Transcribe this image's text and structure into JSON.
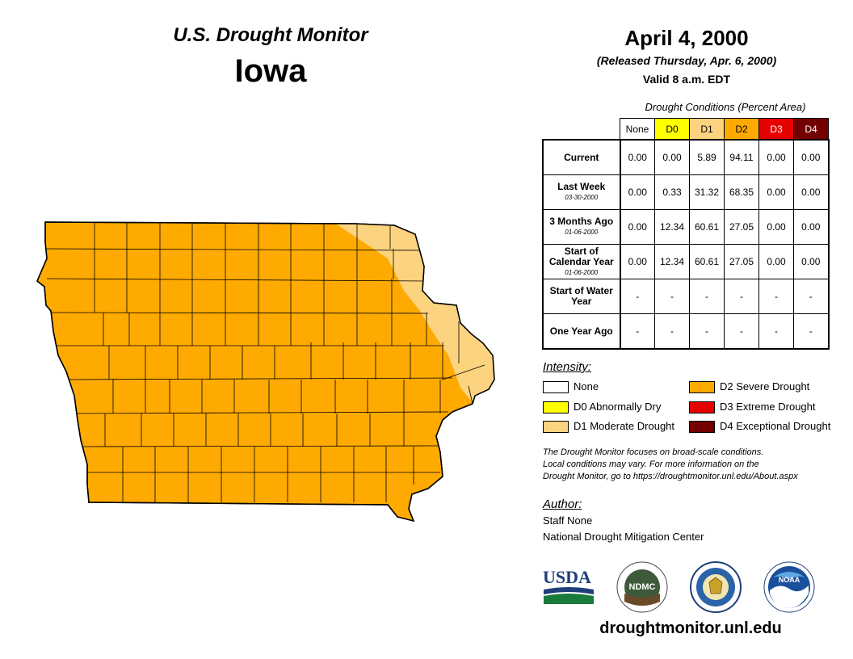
{
  "header": {
    "title": "U.S. Drought Monitor",
    "state": "Iowa",
    "date": "April 4, 2000",
    "released": "(Released Thursday, Apr. 6, 2000)",
    "valid": "Valid 8 a.m. EDT"
  },
  "table": {
    "caption": "Drought Conditions (Percent Area)",
    "columns": [
      "None",
      "D0",
      "D1",
      "D2",
      "D3",
      "D4"
    ],
    "rows": [
      {
        "label": "Current",
        "sub": "",
        "values": [
          "0.00",
          "0.00",
          "5.89",
          "94.11",
          "0.00",
          "0.00"
        ]
      },
      {
        "label": "Last Week",
        "sub": "03-30-2000",
        "values": [
          "0.00",
          "0.33",
          "31.32",
          "68.35",
          "0.00",
          "0.00"
        ]
      },
      {
        "label": "3 Months Ago",
        "sub": "01-06-2000",
        "values": [
          "0.00",
          "12.34",
          "60.61",
          "27.05",
          "0.00",
          "0.00"
        ]
      },
      {
        "label": "Start of Calendar Year",
        "sub": "01-06-2000",
        "values": [
          "0.00",
          "12.34",
          "60.61",
          "27.05",
          "0.00",
          "0.00"
        ]
      },
      {
        "label": "Start of Water Year",
        "sub": "",
        "values": [
          "-",
          "-",
          "-",
          "-",
          "-",
          "-"
        ]
      },
      {
        "label": "One Year Ago",
        "sub": "",
        "values": [
          "-",
          "-",
          "-",
          "-",
          "-",
          "-"
        ]
      }
    ]
  },
  "legend": {
    "title": "Intensity:",
    "items": [
      {
        "label": "None",
        "color": "#ffffff"
      },
      {
        "label": "D0 Abnormally Dry",
        "color": "#ffff00"
      },
      {
        "label": "D1 Moderate Drought",
        "color": "#fcd37f"
      },
      {
        "label": "D2 Severe Drought",
        "color": "#ffaa00"
      },
      {
        "label": "D3 Extreme Drought",
        "color": "#e60000"
      },
      {
        "label": "D4 Exceptional Drought",
        "color": "#730000"
      }
    ]
  },
  "disclaimer": [
    "The Drought Monitor focuses on broad-scale conditions.",
    "Local conditions may vary. For more information on the",
    "Drought Monitor, go to https://droughtmonitor.unl.edu/About.aspx"
  ],
  "author": {
    "title": "Author:",
    "name": "Staff None",
    "org": "National Drought Mitigation Center"
  },
  "logos": {
    "usda": "USDA",
    "ndmc": "NDMC",
    "noaa": "NOAA"
  },
  "website": "droughtmonitor.unl.edu",
  "colors": {
    "d1": "#fcd37f",
    "d2": "#ffaa00",
    "border": "#000000"
  }
}
